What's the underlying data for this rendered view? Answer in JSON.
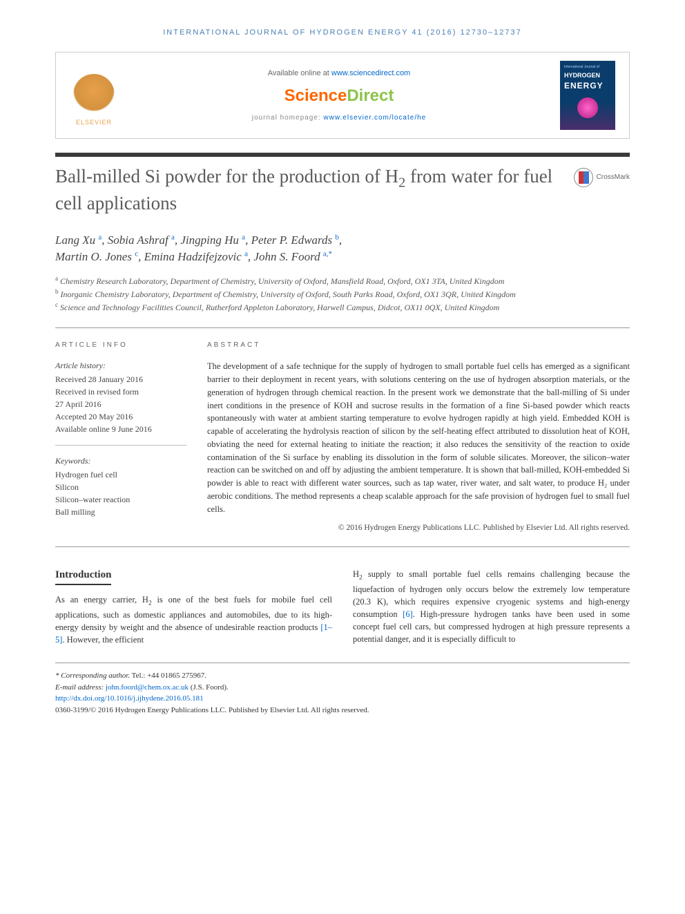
{
  "journal_header": "INTERNATIONAL JOURNAL OF HYDROGEN ENERGY 41 (2016) 12730–12737",
  "header": {
    "available_prefix": "Available online at ",
    "available_link": "www.sciencedirect.com",
    "homepage_prefix": "journal homepage: ",
    "homepage_link": "www.elsevier.com/locate/he",
    "elsevier": "ELSEVIER",
    "cover_small": "International Journal of",
    "cover_hydrogen": "HYDROGEN",
    "cover_energy": "ENERGY"
  },
  "crossmark": "CrossMark",
  "title_pre": "Ball-milled Si powder for the production of H",
  "title_sub": "2",
  "title_post": " from water for fuel cell applications",
  "authors": {
    "a1": "Lang Xu",
    "s1": "a",
    "a2": "Sobia Ashraf",
    "s2": "a",
    "a3": "Jingping Hu",
    "s3": "a",
    "a4": "Peter P. Edwards",
    "s4": "b",
    "a5": "Martin O. Jones",
    "s5": "c",
    "a6": "Emina Hadzifejzovic",
    "s6": "a",
    "a7": "John S. Foord",
    "s7": "a,*"
  },
  "affiliations": {
    "a": "Chemistry Research Laboratory, Department of Chemistry, University of Oxford, Mansfield Road, Oxford, OX1 3TA, United Kingdom",
    "b": "Inorganic Chemistry Laboratory, Department of Chemistry, University of Oxford, South Parks Road, Oxford, OX1 3QR, United Kingdom",
    "c": "Science and Technology Facilities Council, Rutherford Appleton Laboratory, Harwell Campus, Didcot, OX11 0QX, United Kingdom"
  },
  "info": {
    "heading": "ARTICLE INFO",
    "history_label": "Article history:",
    "received": "Received 28 January 2016",
    "revised1": "Received in revised form",
    "revised2": "27 April 2016",
    "accepted": "Accepted 20 May 2016",
    "online": "Available online 9 June 2016",
    "keywords_label": "Keywords:",
    "k1": "Hydrogen fuel cell",
    "k2": "Silicon",
    "k3": "Silicon–water reaction",
    "k4": "Ball milling"
  },
  "abstract": {
    "heading": "ABSTRACT",
    "text": "The development of a safe technique for the supply of hydrogen to small portable fuel cells has emerged as a significant barrier to their deployment in recent years, with solutions centering on the use of hydrogen absorption materials, or the generation of hydrogen through chemical reaction. In the present work we demonstrate that the ball-milling of Si under inert conditions in the presence of KOH and sucrose results in the formation of a fine Si-based powder which reacts spontaneously with water at ambient starting temperature to evolve hydrogen rapidly at high yield. Embedded KOH is capable of accelerating the hydrolysis reaction of silicon by the self-heating effect attributed to dissolution heat of KOH, obviating the need for external heating to initiate the reaction; it also reduces the sensitivity of the reaction to oxide contamination of the Si surface by enabling its dissolution in the form of soluble silicates. Moreover, the silicon–water reaction can be switched on and off by adjusting the ambient temperature. It is shown that ball-milled, KOH-embedded Si powder is able to react with different water sources, such as tap water, river water, and salt water, to produce H₂ under aerobic conditions. The method represents a cheap scalable approach for the safe provision of hydrogen fuel to small fuel cells.",
    "copyright": "© 2016 Hydrogen Energy Publications LLC. Published by Elsevier Ltd. All rights reserved."
  },
  "intro": {
    "heading": "Introduction",
    "left_pre": "As an energy carrier, H",
    "left_post": " is one of the best fuels for mobile fuel cell applications, such as domestic appliances and automobiles, due to its high-energy density by weight and the absence of undesirable reaction products ",
    "left_ref": "[1–5]",
    "left_end": ". However, the efficient",
    "right_pre": "H",
    "right_mid": " supply to small portable fuel cells remains challenging because the liquefaction of hydrogen only occurs below the extremely low temperature (20.3 K), which requires expensive cryogenic systems and high-energy consumption ",
    "right_ref": "[6]",
    "right_post": ". High-pressure hydrogen tanks have been used in some concept fuel cell cars, but compressed hydrogen at high pressure represents a potential danger, and it is especially difficult to"
  },
  "footer": {
    "corr_label": "* Corresponding author.",
    "corr_tel": " Tel.: +44 01865 275967.",
    "email_label": "E-mail address: ",
    "email": "john.foord@chem.ox.ac.uk",
    "email_suffix": " (J.S. Foord).",
    "doi": "http://dx.doi.org/10.1016/j.ijhydene.2016.05.181",
    "issn": "0360-3199/© 2016 Hydrogen Energy Publications LLC. Published by Elsevier Ltd. All rights reserved."
  },
  "colors": {
    "link": "#0066cc",
    "orange": "#ff6600",
    "green": "#8bc34a",
    "title_gray": "#5a5a5a",
    "bar_dark": "#3a3a3a",
    "elsevier_orange": "#e8a04a"
  }
}
